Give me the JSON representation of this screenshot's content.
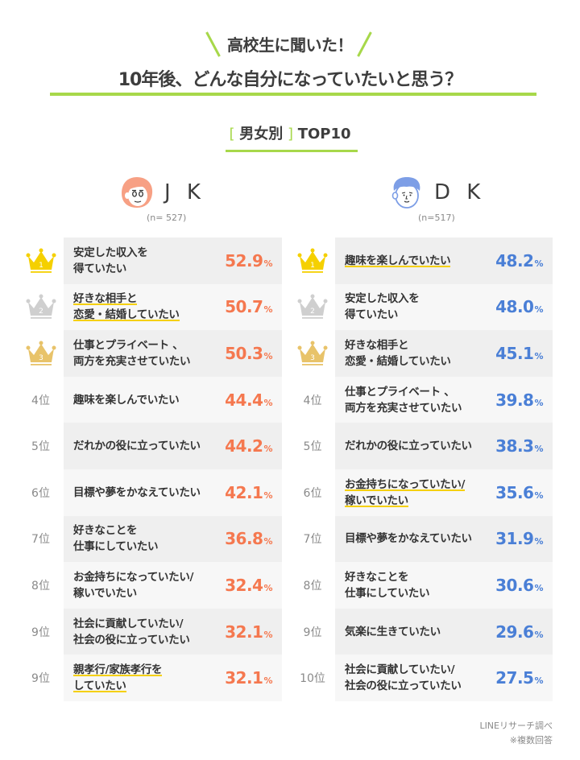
{
  "header": {
    "kicker": "高校生に聞いた！",
    "title": "10年後、どんな自分になっていたいと思う？",
    "subtitle_bracket_open": "[",
    "subtitle_label": "男女別",
    "subtitle_bracket_close": "]",
    "subtitle_suffix": "TOP10"
  },
  "groups": {
    "jk": {
      "name": "J K",
      "n": "(n= 527)",
      "color": "#f5784f",
      "avatar": "girl-face-icon"
    },
    "dk": {
      "name": "D K",
      "n": "(n=517)",
      "color": "#4a7fd6",
      "avatar": "boy-face-icon"
    }
  },
  "colors": {
    "accent_green": "#a7d84a",
    "highlight_yellow": "#f5d000",
    "gold": "#f5d000",
    "silver": "#cfcfcf",
    "bronze": "#e8c36a"
  },
  "footer": {
    "source": "LINEリサーチ調べ",
    "note": "※複数回答"
  },
  "chart_data": [
    {
      "type": "table",
      "title": "JK (n=527) 10年後、どんな自分になっていたいと思う？ TOP10",
      "columns": [
        "rank",
        "item",
        "percent"
      ],
      "unit": "%",
      "rows": [
        {
          "rank": "1",
          "item": "安定した収入を\n得ていたい",
          "value": 52.9,
          "highlight": false
        },
        {
          "rank": "2",
          "item": "好きな相手と\n恋愛・結婚していたい",
          "value": 50.7,
          "highlight": true
        },
        {
          "rank": "3",
          "item": "仕事とプライベート 、\n両方を充実させていたい",
          "value": 50.3,
          "highlight": false
        },
        {
          "rank": "4位",
          "item": "趣味を楽しんでいたい",
          "value": 44.4,
          "highlight": false
        },
        {
          "rank": "5位",
          "item": "だれかの役に立っていたい",
          "value": 44.2,
          "highlight": false
        },
        {
          "rank": "6位",
          "item": "目標や夢をかなえていたい",
          "value": 42.1,
          "highlight": false
        },
        {
          "rank": "7位",
          "item": "好きなことを\n仕事にしていたい",
          "value": 36.8,
          "highlight": false
        },
        {
          "rank": "8位",
          "item": "お金持ちになっていたい/\n稼いでいたい",
          "value": 32.4,
          "highlight": false
        },
        {
          "rank": "9位",
          "item": "社会に貢献していたい/\n社会の役に立っていたい",
          "value": 32.1,
          "highlight": false
        },
        {
          "rank": "9位",
          "item": "親孝行/家族孝行を\nしていたい",
          "value": 32.1,
          "highlight": true
        }
      ]
    },
    {
      "type": "table",
      "title": "DK (n=517) 10年後、どんな自分になっていたいと思う？ TOP10",
      "columns": [
        "rank",
        "item",
        "percent"
      ],
      "unit": "%",
      "rows": [
        {
          "rank": "1",
          "item": "趣味を楽しんでいたい",
          "value": 48.2,
          "highlight": true
        },
        {
          "rank": "2",
          "item": "安定した収入を\n得ていたい",
          "value": 48.0,
          "highlight": false
        },
        {
          "rank": "3",
          "item": "好きな相手と\n恋愛・結婚していたい",
          "value": 45.1,
          "highlight": false
        },
        {
          "rank": "4位",
          "item": "仕事とプライベート 、\n両方を充実させていたい",
          "value": 39.8,
          "highlight": false
        },
        {
          "rank": "5位",
          "item": "だれかの役に立っていたい",
          "value": 38.3,
          "highlight": false
        },
        {
          "rank": "6位",
          "item": "お金持ちになっていたい/\n稼いでいたい",
          "value": 35.6,
          "highlight": true
        },
        {
          "rank": "7位",
          "item": "目標や夢をかなえていたい",
          "value": 31.9,
          "highlight": false
        },
        {
          "rank": "8位",
          "item": "好きなことを\n仕事にしていたい",
          "value": 30.6,
          "highlight": false
        },
        {
          "rank": "9位",
          "item": "気楽に生きていたい",
          "value": 29.6,
          "highlight": false
        },
        {
          "rank": "10位",
          "item": "社会に貢献していたい/\n社会の役に立っていたい",
          "value": 27.5,
          "highlight": false
        }
      ]
    }
  ]
}
